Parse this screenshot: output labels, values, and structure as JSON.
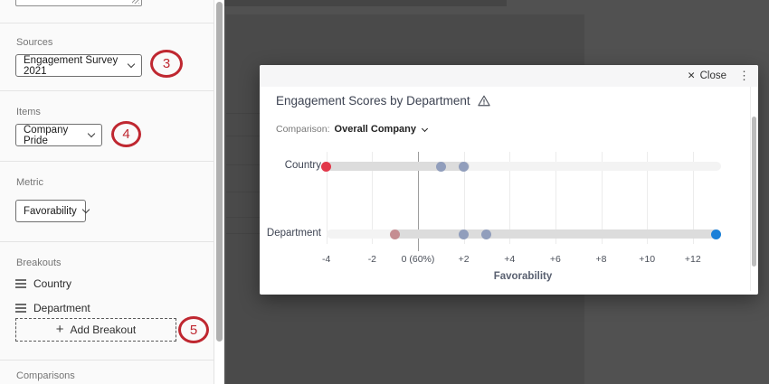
{
  "sidebar": {
    "sources": {
      "label": "Sources",
      "value": "Engagement Survey 2021"
    },
    "items": {
      "label": "Items",
      "value": "Company Pride"
    },
    "metric": {
      "label": "Metric",
      "value": "Favorability"
    },
    "breakouts": {
      "label": "Breakouts",
      "rows": [
        "Country",
        "Department"
      ],
      "plus": "+",
      "add_label": "Add Breakout"
    },
    "comparisons": {
      "label": "Comparisons"
    }
  },
  "annotations": {
    "step3": "3",
    "step4": "4",
    "step5": "5",
    "color": "#bf2730"
  },
  "modal": {
    "close": "Close",
    "title": "Engagement Scores by Department",
    "comparison_label": "Comparison:",
    "comparison_value": "Overall Company"
  },
  "icons": {
    "close": "✕",
    "kebab": "⋮"
  },
  "chart_data": {
    "type": "scatter",
    "title": "Engagement Scores by Department",
    "xlabel": "Favorability",
    "xlim": [
      -4.4,
      13.6
    ],
    "bar_range": [
      -4,
      13.25
    ],
    "x_tick_values": [
      -4,
      -2,
      0,
      2,
      4,
      6,
      8,
      10,
      12
    ],
    "x_tick_labels": [
      "-4",
      "-2",
      "0 (60%)",
      "+2",
      "+4",
      "+6",
      "+8",
      "+10",
      "+12"
    ],
    "grid": true,
    "rows": [
      {
        "label": "Country",
        "highlight_range": [
          -4,
          2.25
        ],
        "points": [
          {
            "x": -4,
            "color": "bright_red"
          },
          {
            "x": 1,
            "color": "muted_blue"
          },
          {
            "x": 2,
            "color": "muted_blue"
          }
        ]
      },
      {
        "label": "Department",
        "highlight_range": [
          -1.15,
          13.25
        ],
        "points": [
          {
            "x": -1,
            "color": "muted_red"
          },
          {
            "x": 2,
            "color": "muted_blue"
          },
          {
            "x": 3,
            "color": "muted_blue"
          },
          {
            "x": 13,
            "color": "bright_blue"
          }
        ]
      }
    ],
    "palette": {
      "bright_red": "#e2384a",
      "muted_red": "#c58d92",
      "muted_blue": "#919ebc",
      "bright_blue": "#1b80d8",
      "bar": "#dcdcdc",
      "bar_light": "#f3f3f3",
      "zero_line": "#9c9c9c",
      "gridline": "#ececec"
    }
  }
}
